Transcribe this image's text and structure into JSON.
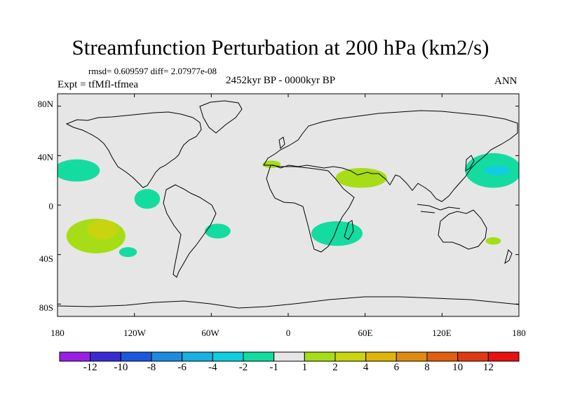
{
  "title": "Streamfunction Perturbation at 200 hPa (km2/s)",
  "stats_text": "rmsd= 0.609597 diff= 2.07977e-08",
  "period_text": "2452kyr BP - 0000kyr BP",
  "experiment_text": "Expt = tfMfl-tfmea",
  "season_text": "ANN",
  "lat_labels": [
    "80N",
    "40N",
    "0",
    "40S",
    "80S"
  ],
  "lon_labels": [
    "180",
    "120W",
    "60W",
    "0",
    "60E",
    "120E",
    "180"
  ],
  "colorbar": {
    "labels": [
      "-12",
      "-10",
      "-8",
      "-6",
      "-4",
      "-2",
      "-1",
      "1",
      "2",
      "4",
      "6",
      "8",
      "10",
      "12"
    ],
    "colors": [
      "#9a1fe6",
      "#3a2ad6",
      "#1b58e0",
      "#1e8be0",
      "#19b0e0",
      "#10cde0",
      "#14dca0",
      "#e6e6e6",
      "#a6dd16",
      "#c8d40e",
      "#e0b30a",
      "#e08a10",
      "#e06010",
      "#e03a12",
      "#e81010"
    ]
  },
  "colors": {
    "map_background": "#e6e6e6",
    "positive_1_2": "#a6dd16",
    "positive_2_4": "#c8d40e",
    "negative_1_2": "#14dca0",
    "negative_2_4": "#10cde0"
  },
  "map_data": {
    "projection": "cylindrical equidistant",
    "lon_range": [
      -180,
      180
    ],
    "lat_range": [
      -90,
      90
    ],
    "anomalies": [
      {
        "lon": -165,
        "lat": 28,
        "rx": 18,
        "ry": 9,
        "level": "negative_1_2"
      },
      {
        "lon": -150,
        "lat": -25,
        "rx": 23,
        "ry": 14,
        "level": "positive_1_2"
      },
      {
        "lon": -145,
        "lat": -20,
        "rx": 12,
        "ry": 8,
        "level": "positive_2_4"
      },
      {
        "lon": -110,
        "lat": 5,
        "rx": 10,
        "ry": 8,
        "level": "negative_1_2"
      },
      {
        "lon": -125,
        "lat": -38,
        "rx": 7,
        "ry": 4,
        "level": "negative_1_2"
      },
      {
        "lon": -55,
        "lat": -21,
        "rx": 10,
        "ry": 6,
        "level": "negative_1_2"
      },
      {
        "lon": -13,
        "lat": 33,
        "rx": 7,
        "ry": 3,
        "level": "positive_1_2"
      },
      {
        "lon": 57,
        "lat": 22,
        "rx": 20,
        "ry": 8,
        "level": "positive_1_2"
      },
      {
        "lon": 38,
        "lat": -23,
        "rx": 20,
        "ry": 10,
        "level": "negative_1_2"
      },
      {
        "lon": 160,
        "lat": 28,
        "rx": 22,
        "ry": 14,
        "level": "negative_1_2"
      },
      {
        "lon": 163,
        "lat": 28,
        "rx": 10,
        "ry": 4,
        "level": "negative_2_4"
      },
      {
        "lon": 160,
        "lat": -29,
        "rx": 6,
        "ry": 3,
        "level": "positive_1_2"
      }
    ]
  }
}
